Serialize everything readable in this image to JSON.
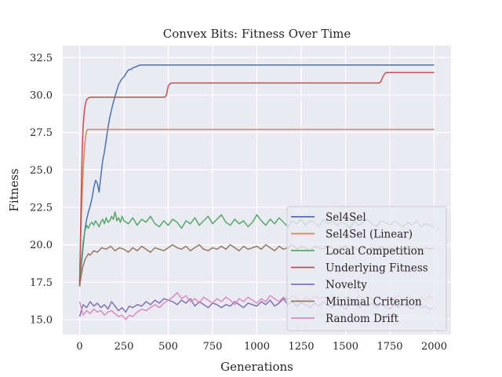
{
  "chart_data": {
    "type": "line",
    "title": "Convex Bits: Fitness Over Time",
    "xlabel": "Generations",
    "ylabel": "Fitness",
    "xlim": [
      -95,
      2095
    ],
    "ylim": [
      14.0,
      33.3
    ],
    "xticks": [
      0,
      250,
      500,
      750,
      1000,
      1250,
      1500,
      1750,
      2000
    ],
    "xtick_labels": [
      "0",
      "250",
      "500",
      "750",
      "1000",
      "1250",
      "1500",
      "1750",
      "2000"
    ],
    "yticks": [
      15.0,
      17.5,
      20.0,
      22.5,
      25.0,
      27.5,
      30.0,
      32.5
    ],
    "ytick_labels": [
      "15.0",
      "17.5",
      "20.0",
      "22.5",
      "25.0",
      "27.5",
      "30.0",
      "32.5"
    ],
    "grid": true,
    "legend_position": "lower-right",
    "background": "#eaeaf2",
    "series": [
      {
        "name": "Sel4Sel",
        "color": "#4c72b0",
        "x": [
          0,
          10,
          20,
          30,
          40,
          50,
          60,
          70,
          80,
          90,
          100,
          110,
          120,
          130,
          140,
          150,
          160,
          170,
          180,
          190,
          200,
          210,
          220,
          230,
          240,
          250,
          260,
          270,
          280,
          290,
          300,
          320,
          340,
          360,
          400,
          500,
          1000,
          1500,
          2000
        ],
        "values": [
          17.3,
          18.6,
          19.9,
          21.0,
          21.7,
          22.2,
          22.6,
          23.1,
          23.8,
          24.3,
          24.1,
          23.5,
          24.6,
          25.6,
          26.2,
          27.0,
          27.8,
          28.5,
          29.0,
          29.5,
          29.9,
          30.3,
          30.7,
          30.9,
          31.1,
          31.2,
          31.4,
          31.6,
          31.7,
          31.7,
          31.8,
          31.9,
          32.0,
          32.0,
          32.0,
          32.0,
          32.0,
          32.0,
          32.0
        ]
      },
      {
        "name": "Sel4Sel (Linear)",
        "color": "#dd8452",
        "x": [
          0,
          5,
          10,
          15,
          20,
          25,
          30,
          35,
          40,
          45,
          50,
          60,
          100,
          500,
          1000,
          1500,
          2000
        ],
        "values": [
          17.5,
          19.8,
          21.8,
          23.5,
          24.9,
          26.0,
          26.8,
          27.3,
          27.6,
          27.7,
          27.7,
          27.7,
          27.7,
          27.7,
          27.7,
          27.7,
          27.7
        ]
      },
      {
        "name": "Local Competition",
        "color": "#55a868",
        "x": [
          0,
          10,
          20,
          30,
          40,
          50,
          60,
          70,
          80,
          90,
          100,
          110,
          120,
          130,
          140,
          150,
          160,
          170,
          180,
          190,
          200,
          210,
          220,
          230,
          240,
          250,
          275,
          300,
          325,
          350,
          375,
          400,
          425,
          450,
          475,
          500,
          525,
          550,
          575,
          600,
          625,
          650,
          675,
          700,
          725,
          750,
          775,
          800,
          825,
          850,
          875,
          900,
          925,
          950,
          975,
          1000,
          1025,
          1050,
          1075,
          1100,
          1125,
          1150,
          1175,
          1200,
          1225,
          1250,
          1275,
          1300,
          1325,
          1350,
          1375,
          1400,
          1425,
          1450,
          1475,
          1500,
          1525,
          1550,
          1575,
          1600,
          1625,
          1650,
          1675,
          1700,
          1725,
          1750,
          1775,
          1800,
          1825,
          1850,
          1875,
          1900,
          1925,
          1950,
          1975,
          2000
        ],
        "values": [
          17.2,
          19.0,
          20.2,
          20.9,
          21.3,
          21.1,
          21.4,
          21.5,
          21.3,
          21.6,
          21.4,
          21.2,
          21.5,
          21.7,
          21.4,
          21.8,
          21.5,
          21.6,
          21.9,
          21.7,
          22.2,
          21.6,
          21.8,
          21.5,
          21.9,
          21.6,
          21.4,
          21.8,
          21.3,
          21.7,
          21.5,
          21.9,
          21.4,
          21.2,
          21.6,
          21.3,
          21.7,
          21.5,
          21.1,
          21.6,
          21.4,
          21.8,
          21.3,
          21.6,
          21.9,
          21.4,
          21.7,
          22.0,
          21.5,
          21.3,
          21.7,
          21.4,
          21.6,
          21.2,
          21.5,
          22.0,
          21.6,
          21.3,
          21.7,
          21.4,
          21.8,
          21.5,
          21.2,
          21.6,
          21.4,
          21.7,
          21.3,
          21.6,
          21.5,
          21.2,
          21.7,
          21.4,
          21.6,
          21.3,
          21.5,
          21.4,
          21.1,
          21.6,
          21.3,
          21.5,
          21.7,
          21.4,
          21.2,
          21.6,
          21.5,
          21.3,
          21.6,
          21.4,
          21.2,
          21.5,
          21.3,
          21.6,
          21.2,
          21.4,
          21.3,
          21.2
        ]
      },
      {
        "name": "Underlying Fitness",
        "color": "#c44e52",
        "x": [
          0,
          5,
          10,
          15,
          20,
          25,
          30,
          35,
          40,
          50,
          60,
          80,
          100,
          200,
          300,
          400,
          480,
          490,
          500,
          510,
          520,
          600,
          800,
          1000,
          1200,
          1400,
          1600,
          1690,
          1700,
          1710,
          1720,
          1730,
          1800,
          2000
        ],
        "values": [
          17.3,
          20.6,
          23.8,
          26.3,
          27.9,
          28.7,
          29.2,
          29.5,
          29.7,
          29.8,
          29.85,
          29.85,
          29.85,
          29.85,
          29.85,
          29.85,
          29.85,
          30.0,
          30.6,
          30.75,
          30.8,
          30.8,
          30.8,
          30.8,
          30.8,
          30.8,
          30.8,
          30.8,
          30.9,
          31.2,
          31.4,
          31.5,
          31.5,
          31.5
        ]
      },
      {
        "name": "Novelty",
        "color": "#8172b3",
        "x": [
          0,
          20,
          40,
          60,
          80,
          100,
          120,
          140,
          160,
          180,
          200,
          220,
          240,
          260,
          280,
          300,
          325,
          350,
          375,
          400,
          425,
          450,
          475,
          500,
          525,
          550,
          575,
          600,
          625,
          650,
          675,
          700,
          725,
          750,
          775,
          800,
          825,
          850,
          875,
          900,
          925,
          950,
          975,
          1000,
          1025,
          1050,
          1075,
          1100,
          1125,
          1150,
          1175,
          1200,
          1225,
          1250,
          1275,
          1300,
          1325,
          1350,
          1375,
          1400,
          1425,
          1450,
          1475,
          1500,
          1525,
          1550,
          1575,
          1600,
          1625,
          1650,
          1675,
          1700,
          1725,
          1750,
          1775,
          1800,
          1825,
          1850,
          1875,
          1900,
          1925,
          1950,
          1975,
          2000
        ],
        "values": [
          15.2,
          16.0,
          15.8,
          16.2,
          15.9,
          16.1,
          15.8,
          16.0,
          15.7,
          16.2,
          15.9,
          15.6,
          15.8,
          15.5,
          15.9,
          15.8,
          16.0,
          15.9,
          16.2,
          16.0,
          16.3,
          16.1,
          16.4,
          16.3,
          16.2,
          16.0,
          16.3,
          16.1,
          16.4,
          15.9,
          16.2,
          16.0,
          15.8,
          16.1,
          16.0,
          15.8,
          16.0,
          15.9,
          16.2,
          16.0,
          15.8,
          16.1,
          16.0,
          15.9,
          16.2,
          16.0,
          16.3,
          15.9,
          16.1,
          16.4,
          16.0,
          16.2,
          15.9,
          16.1,
          16.0,
          15.8,
          16.1,
          15.9,
          16.2,
          16.0,
          15.8,
          16.1,
          15.9,
          15.7,
          16.0,
          16.2,
          15.8,
          16.0,
          15.9,
          16.1,
          15.8,
          16.0,
          15.9,
          15.7,
          16.0,
          15.8,
          16.1,
          15.9,
          15.7,
          16.0,
          15.8,
          15.9,
          15.7,
          15.8
        ]
      },
      {
        "name": "Minimal Criterion",
        "color": "#937860",
        "x": [
          0,
          10,
          20,
          30,
          40,
          50,
          60,
          80,
          100,
          125,
          150,
          175,
          200,
          225,
          250,
          275,
          300,
          325,
          350,
          375,
          400,
          425,
          450,
          475,
          500,
          525,
          550,
          575,
          600,
          625,
          650,
          675,
          700,
          725,
          750,
          775,
          800,
          825,
          850,
          875,
          900,
          925,
          950,
          975,
          1000,
          1025,
          1050,
          1075,
          1100,
          1125,
          1150,
          1175,
          1200,
          1225,
          1250,
          1275,
          1300,
          1325,
          1350,
          1375,
          1400,
          1425,
          1450,
          1475,
          1500,
          1525,
          1550,
          1575,
          1600,
          1625,
          1650,
          1675,
          1700,
          1725,
          1750,
          1775,
          1800,
          1825,
          1850,
          1875,
          1900,
          1925,
          1950,
          1975,
          2000
        ],
        "values": [
          17.2,
          18.0,
          18.6,
          19.0,
          19.2,
          19.4,
          19.3,
          19.6,
          19.5,
          19.8,
          19.7,
          19.9,
          19.6,
          19.8,
          19.7,
          19.5,
          19.8,
          19.6,
          19.9,
          19.7,
          19.5,
          19.8,
          19.7,
          19.6,
          19.8,
          20.0,
          19.8,
          19.7,
          19.9,
          19.6,
          19.8,
          20.0,
          19.7,
          19.6,
          19.8,
          19.7,
          19.9,
          19.7,
          20.0,
          19.8,
          19.6,
          19.9,
          19.7,
          19.8,
          19.9,
          19.7,
          20.0,
          19.8,
          19.6,
          19.9,
          19.7,
          19.8,
          20.0,
          19.7,
          19.9,
          19.8,
          19.6,
          19.9,
          19.8,
          19.7,
          19.9,
          19.8,
          19.6,
          19.8,
          19.9,
          19.7,
          19.8,
          19.6,
          19.9,
          19.7,
          19.8,
          19.6,
          19.9,
          19.7,
          19.8,
          19.6,
          19.8,
          19.7,
          19.9,
          19.7,
          19.8,
          19.6,
          19.8,
          19.7,
          19.8
        ]
      },
      {
        "name": "Random Drift",
        "color": "#da8bc3",
        "x": [
          0,
          20,
          40,
          60,
          80,
          100,
          120,
          140,
          160,
          180,
          200,
          220,
          240,
          260,
          280,
          300,
          325,
          350,
          375,
          400,
          425,
          450,
          475,
          500,
          525,
          550,
          575,
          600,
          625,
          650,
          675,
          700,
          725,
          750,
          775,
          800,
          825,
          850,
          875,
          900,
          925,
          950,
          975,
          1000,
          1025,
          1050,
          1075,
          1100,
          1125,
          1150,
          1175,
          1200,
          1225,
          1250,
          1275,
          1300,
          1325,
          1350,
          1375,
          1400,
          1425,
          1450,
          1475,
          1500,
          1525,
          1550,
          1575,
          1600,
          1625,
          1650,
          1675,
          1700,
          1725,
          1750,
          1775,
          1800,
          1825,
          1850,
          1875,
          1900,
          1925,
          1950,
          1975,
          2000
        ],
        "values": [
          16.2,
          15.3,
          15.6,
          15.4,
          15.7,
          15.5,
          15.6,
          15.3,
          15.5,
          15.6,
          15.4,
          15.2,
          15.3,
          15.0,
          15.3,
          15.2,
          15.5,
          15.7,
          15.6,
          15.8,
          16.0,
          15.8,
          16.1,
          16.3,
          16.5,
          16.8,
          16.4,
          16.6,
          16.2,
          16.4,
          16.1,
          16.5,
          16.3,
          16.1,
          16.4,
          16.2,
          16.5,
          16.3,
          16.0,
          16.4,
          16.2,
          16.5,
          16.3,
          16.1,
          16.4,
          16.2,
          16.6,
          16.4,
          16.2,
          16.5,
          16.3,
          16.6,
          16.4,
          16.2,
          16.5,
          16.3,
          16.6,
          16.4,
          16.5,
          16.3,
          16.6,
          16.4,
          16.2,
          16.5,
          16.4,
          16.3,
          16.6,
          16.4,
          16.5,
          16.3,
          16.6,
          16.4,
          16.2,
          16.5,
          16.4,
          16.6,
          16.3,
          16.5,
          16.4,
          16.2,
          16.5,
          16.3,
          16.6,
          16.4
        ]
      }
    ]
  }
}
